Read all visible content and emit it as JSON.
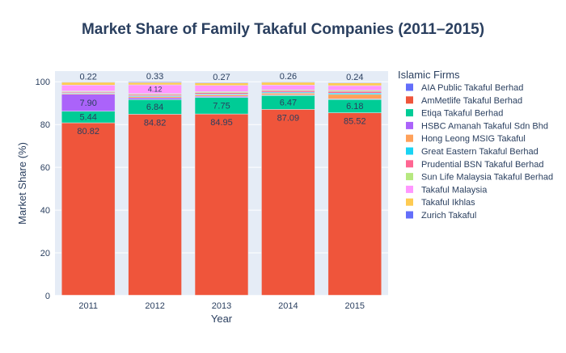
{
  "chart_data": {
    "type": "bar",
    "stacked": true,
    "title": "Market Share of Family Takaful Companies (2011–2015)",
    "xlabel": "Year",
    "ylabel": "Market Share (%)",
    "categories": [
      "2011",
      "2012",
      "2013",
      "2014",
      "2015"
    ],
    "ylim": [
      0,
      105
    ],
    "yticks": [
      0,
      20,
      40,
      60,
      80,
      100
    ],
    "grid": true,
    "legend_title": "Islamic Firms",
    "legend_position": "right",
    "series": [
      {
        "name": "AIA Public Takaful Berhad",
        "color": "#636efa",
        "values": [
          0,
          0,
          0,
          0,
          0
        ]
      },
      {
        "name": "AmMetlife Takaful Berhad",
        "color": "#ef553b",
        "values": [
          80.82,
          84.82,
          84.95,
          87.09,
          85.52
        ]
      },
      {
        "name": "Etiqa Takaful Berhad",
        "color": "#00cc96",
        "values": [
          5.44,
          6.84,
          7.75,
          6.47,
          6.18
        ]
      },
      {
        "name": "HSBC Amanah Takaful Sdn Bhd",
        "color": "#ab63fa",
        "values": [
          7.9,
          0.8,
          0.5,
          0.3,
          0.3
        ]
      },
      {
        "name": "Hong Leong MSIG Takaful",
        "color": "#ffa15a",
        "values": [
          0.4,
          0.6,
          0.7,
          0.8,
          2.1
        ]
      },
      {
        "name": "Great Eastern Takaful Berhad",
        "color": "#19d3f3",
        "values": [
          0.3,
          0.4,
          0.4,
          0.5,
          0.6
        ]
      },
      {
        "name": "Prudential BSN Takaful Berhad",
        "color": "#ff6692",
        "values": [
          0.5,
          0.6,
          0.6,
          0.7,
          0.8
        ]
      },
      {
        "name": "Sun Life Malaysia Takaful Berhad",
        "color": "#b6e880",
        "values": [
          0.3,
          0.4,
          0.5,
          0.4,
          0.5
        ]
      },
      {
        "name": "Takaful Malaysia",
        "color": "#ff97ff",
        "values": [
          2.8,
          4.12,
          2.9,
          2.2,
          2.2
        ]
      },
      {
        "name": "Takaful Ikhlas",
        "color": "#fecb52",
        "values": [
          1.3,
          1.1,
          1.2,
          1.3,
          1.3
        ]
      },
      {
        "name": "Zurich Takaful",
        "color": "#636efa",
        "values": [
          0.22,
          0.33,
          0.27,
          0.26,
          0.24
        ]
      }
    ],
    "data_labels": {
      "AmMetlife Takaful Berhad": [
        "80.82",
        "84.82",
        "84.95",
        "87.09",
        "85.52"
      ],
      "Etiqa Takaful Berhad": [
        "5.44",
        "6.84",
        "7.75",
        "6.47",
        "6.18"
      ],
      "HSBC Amanah Takaful Sdn Bhd": [
        "7.90",
        "",
        "",
        "",
        ""
      ],
      "Takaful Malaysia": [
        "",
        "4.12",
        "",
        "",
        ""
      ],
      "Zurich Takaful": [
        "0.22",
        "0.33",
        "0.27",
        "0.26",
        "0.24"
      ]
    }
  }
}
